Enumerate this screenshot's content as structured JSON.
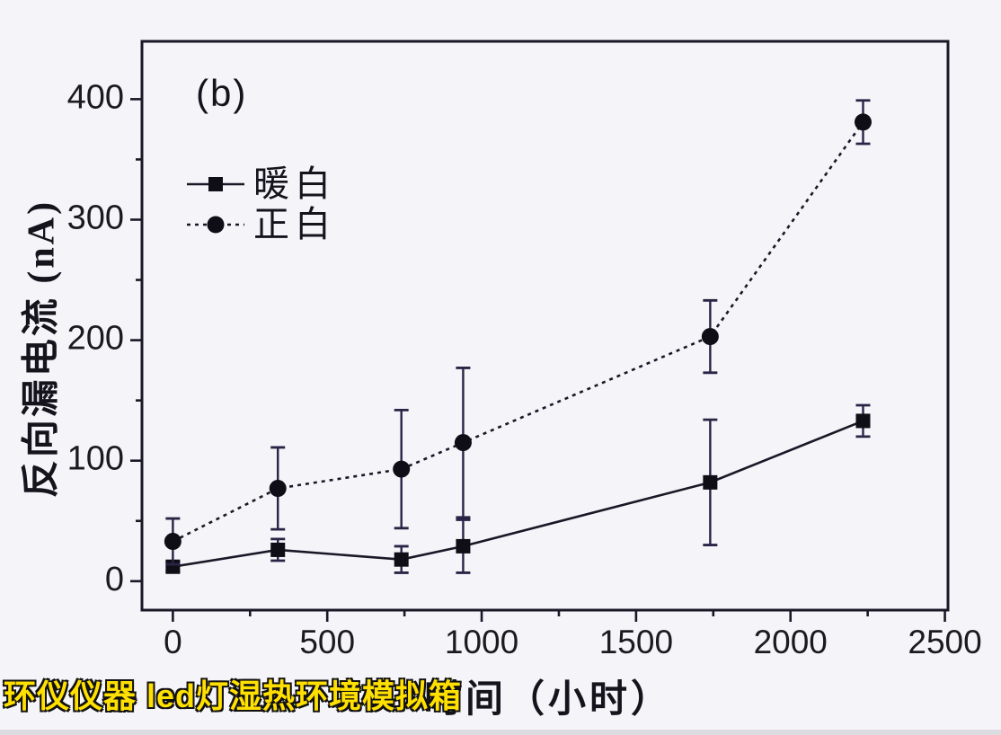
{
  "panel_label": "(b)",
  "watermark": {
    "text": "环仪仪器 led灯湿热环境模拟箱",
    "color": "#ffe000"
  },
  "colors": {
    "background": "#f4f4f9",
    "ink": "#1b1726",
    "marker": "#0f0d15",
    "error_bar": "#2a2345",
    "tick_label": "#1a1a20"
  },
  "chart_data": {
    "type": "line",
    "title": "",
    "panel_label": "(b)",
    "xlabel": "时间（小时）",
    "ylabel": "反向漏电流 (nA)",
    "x": [
      0,
      340,
      740,
      940,
      1740,
      2235
    ],
    "series": [
      {
        "name": "暖白",
        "marker": "square",
        "line_style": "solid",
        "values": [
          12,
          26,
          18,
          29,
          82,
          133
        ],
        "errors": [
          4,
          9,
          11,
          22,
          52,
          13
        ]
      },
      {
        "name": "正白",
        "marker": "circle",
        "line_style": "dotted",
        "values": [
          33,
          77,
          93,
          115,
          203,
          381
        ],
        "errors": [
          19,
          34,
          49,
          62,
          30,
          18
        ]
      }
    ],
    "xlim": [
      -100,
      2510
    ],
    "ylim": [
      -24,
      448
    ],
    "x_major_ticks": [
      0,
      500,
      1000,
      1500,
      2000,
      2500
    ],
    "x_minor_ticks": [
      250,
      750,
      1250,
      1750,
      2250
    ],
    "y_major_ticks": [
      0,
      100,
      200,
      300,
      400
    ],
    "y_minor_ticks": [
      50,
      150,
      250,
      350
    ],
    "grid": false,
    "legend_position": "upper-left-inside",
    "error_bars": true
  }
}
